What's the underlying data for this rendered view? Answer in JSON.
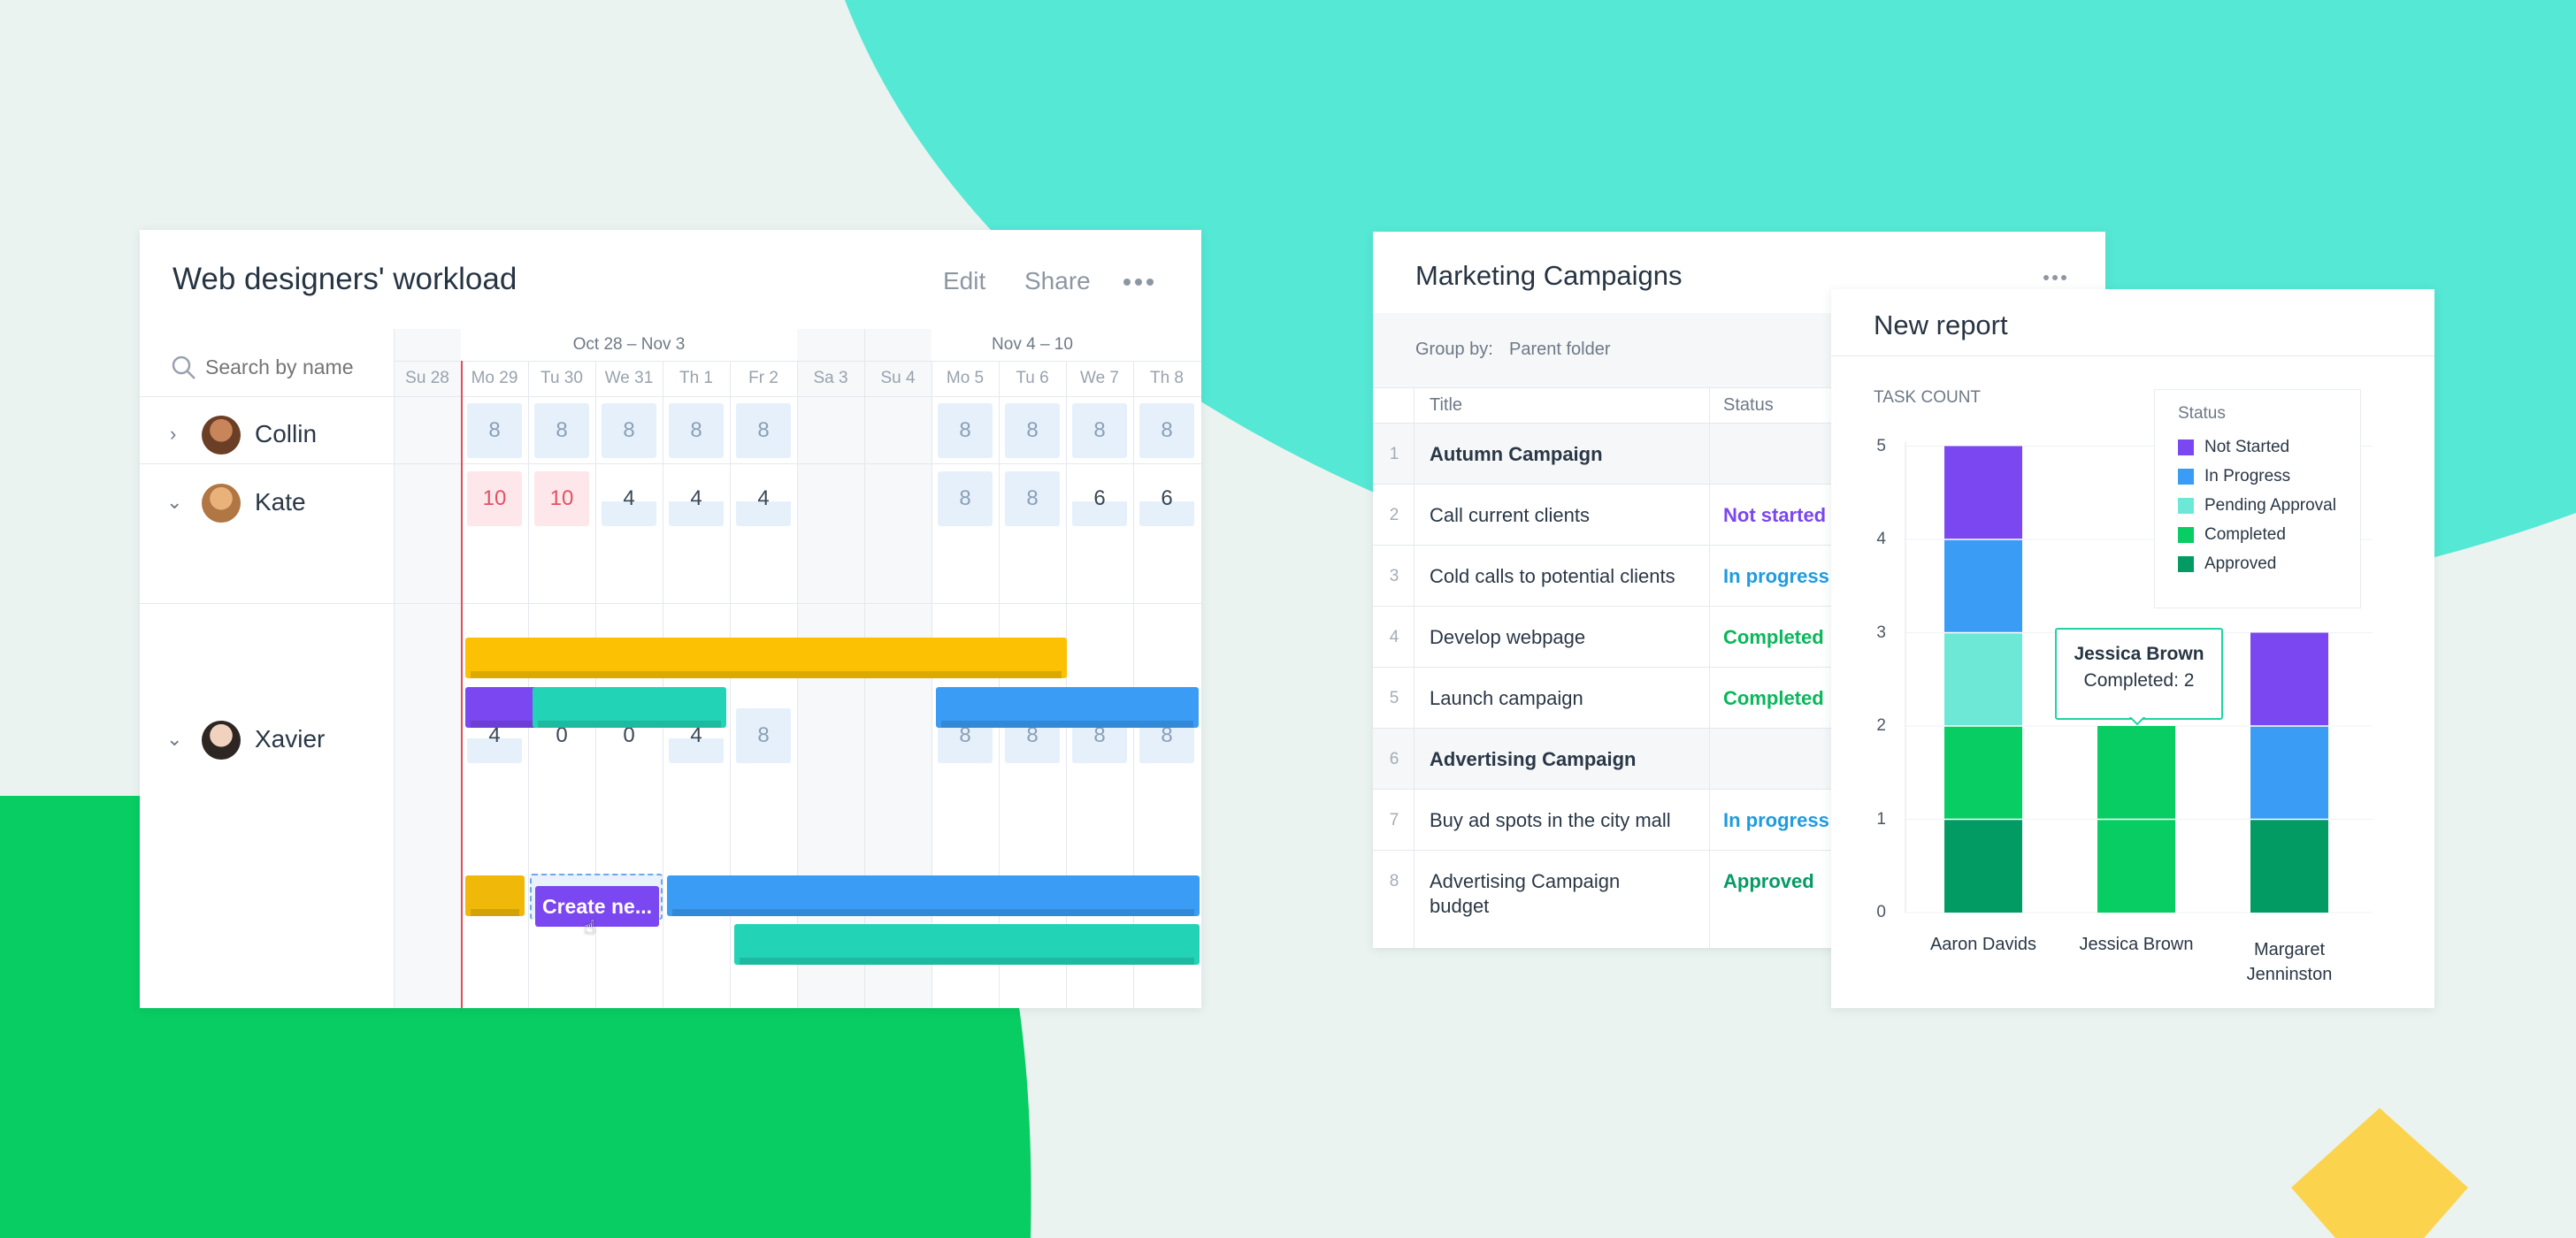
{
  "colors": {
    "teal_bg": "#55e8d5",
    "green_bg": "#08cd62",
    "yellow": "#fcd34c",
    "page_bg": "#eaf3f0",
    "not_started": "#7b47f0",
    "in_progress": "#3a9cf5",
    "pending_approval": "#6ee8d6",
    "completed": "#08cd62",
    "approved": "#039b64"
  },
  "workload": {
    "title": "Web designers' workload",
    "edit_label": "Edit",
    "share_label": "Share",
    "more_icon": "more-horizontal-icon",
    "search_placeholder": "Search by name",
    "weeks": [
      "Oct 28 –  Nov 3",
      "Nov 4 – 10"
    ],
    "days": [
      "Su 28",
      "Mo 29",
      "Tu 30",
      "We 31",
      "Th 1",
      "Fr 2",
      "Sa 3",
      "Su 4",
      "Mo 5",
      "Tu 6",
      "We 7",
      "Th 8"
    ],
    "people": [
      {
        "name": "Collin",
        "expanded": false,
        "hours": [
          null,
          "8",
          "8",
          "8",
          "8",
          "8",
          null,
          null,
          "8",
          "8",
          "8",
          "8"
        ]
      },
      {
        "name": "Kate",
        "expanded": true,
        "hours": [
          null,
          "10",
          "10",
          "4",
          "4",
          "4",
          null,
          null,
          "8",
          "8",
          "6",
          "6"
        ]
      },
      {
        "name": "Xavier",
        "expanded": true,
        "hours": [
          null,
          "4",
          "0",
          "0",
          "4",
          "8",
          null,
          null,
          "8",
          "8",
          "8",
          "8"
        ]
      }
    ],
    "create_label": "Create ne..."
  },
  "marketing": {
    "title": "Marketing Campaigns",
    "more_icon": "more-horizontal-icon",
    "group_by_label": "Group by:",
    "group_by_value": "Parent folder",
    "columns": [
      "Title",
      "Status"
    ],
    "rows": [
      {
        "num": "1",
        "title": "Autumn Campaign",
        "status": "",
        "group": true
      },
      {
        "num": "2",
        "title": "Call current clients",
        "status": "Not started",
        "status_color": "#7b47f0"
      },
      {
        "num": "3",
        "title": "Cold calls to potential clients",
        "status": "In progress",
        "status_color": "#1f9be0"
      },
      {
        "num": "4",
        "title": "Develop webpage",
        "status": "Completed",
        "status_color": "#08b85a"
      },
      {
        "num": "5",
        "title": "Launch campaign",
        "status": "Completed",
        "status_color": "#08b85a"
      },
      {
        "num": "6",
        "title": "Advertising Campaign",
        "status": "",
        "group": true
      },
      {
        "num": "7",
        "title": "Buy ad spots in the city mall",
        "status": "In progress",
        "status_color": "#1f9be0"
      },
      {
        "num": "8",
        "title": "Advertising Campaign",
        "title2": "budget",
        "status": "Approved",
        "status_color": "#039b64"
      }
    ]
  },
  "report": {
    "title": "New report",
    "legend_title": "Status",
    "tooltip": {
      "name": "Jessica Brown",
      "value": "Completed: 2"
    }
  },
  "chart_data": {
    "type": "bar",
    "stacked": true,
    "ylabel": "TASK COUNT",
    "ylim": [
      0,
      5
    ],
    "yticks": [
      "0",
      "1",
      "2",
      "3",
      "4",
      "5"
    ],
    "categories": [
      "Aaron Davids",
      "Jessica Brown",
      "Margaret Jenninston"
    ],
    "series": [
      {
        "name": "Approved",
        "color": "#039b64",
        "values": [
          1,
          0,
          1
        ]
      },
      {
        "name": "Completed",
        "color": "#08cd62",
        "values": [
          1,
          2,
          0
        ]
      },
      {
        "name": "Pending Approval",
        "color": "#6ee8d6",
        "values": [
          1,
          0,
          0
        ]
      },
      {
        "name": "In Progress",
        "color": "#3a9cf5",
        "values": [
          1,
          0,
          1
        ]
      },
      {
        "name": "Not Started",
        "color": "#7b47f0",
        "values": [
          1,
          0,
          1
        ]
      }
    ],
    "legend_order": [
      "Not Started",
      "In Progress",
      "Pending Approval",
      "Completed",
      "Approved"
    ],
    "legend_position": "top-right",
    "grid": true
  }
}
